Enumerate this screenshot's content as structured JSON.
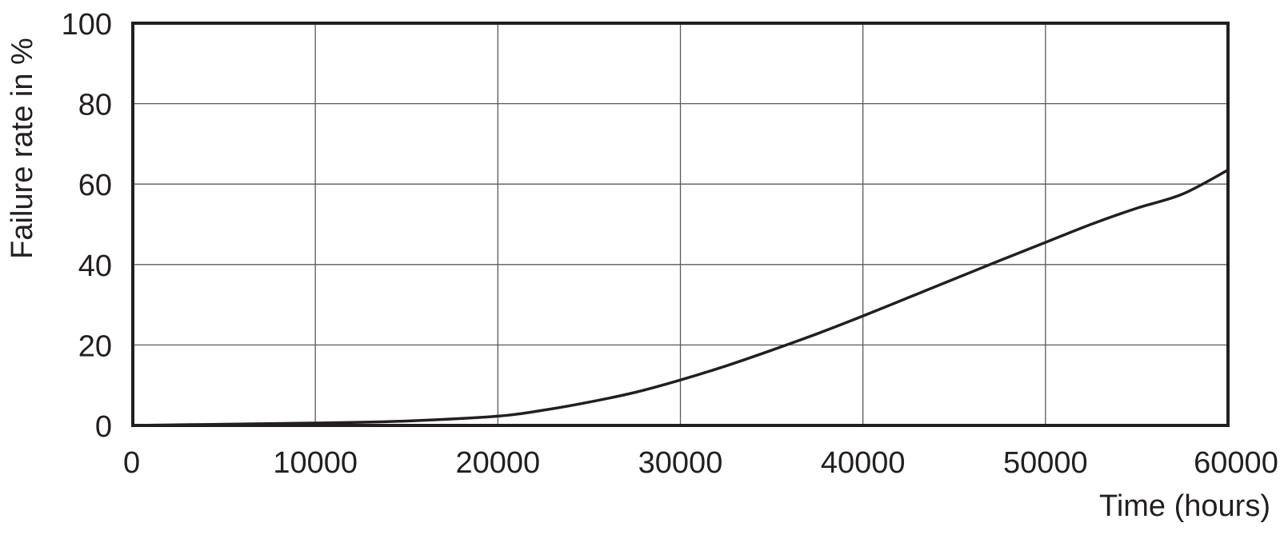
{
  "colors": {
    "line": "#231f20",
    "grid": "#5a5a5e",
    "frame": "#231f20",
    "background": "#ffffff"
  },
  "chart_data": {
    "type": "line",
    "title": "",
    "xlabel": "Time (hours)",
    "ylabel": "Failure rate in %",
    "xlim": [
      0,
      60000
    ],
    "ylim": [
      0,
      100
    ],
    "x_ticks": [
      0,
      10000,
      20000,
      30000,
      40000,
      50000,
      60000
    ],
    "y_ticks": [
      0,
      20,
      40,
      60,
      80,
      100
    ],
    "grid": true,
    "legend": "none",
    "series": [
      {
        "x": [
          0,
          5000,
          10000,
          15000,
          20000,
          22500,
          25000,
          27500,
          30000,
          32500,
          35000,
          37500,
          40000,
          42500,
          45000,
          47500,
          50000,
          52500,
          55000,
          57500,
          60000
        ],
        "y": [
          0,
          0.3,
          0.6,
          1.1,
          2.3,
          3.8,
          5.8,
          8.2,
          11.3,
          14.8,
          18.7,
          22.8,
          27.2,
          31.8,
          36.4,
          41.0,
          45.5,
          50.0,
          54.0,
          57.5,
          63.5
        ]
      }
    ]
  }
}
